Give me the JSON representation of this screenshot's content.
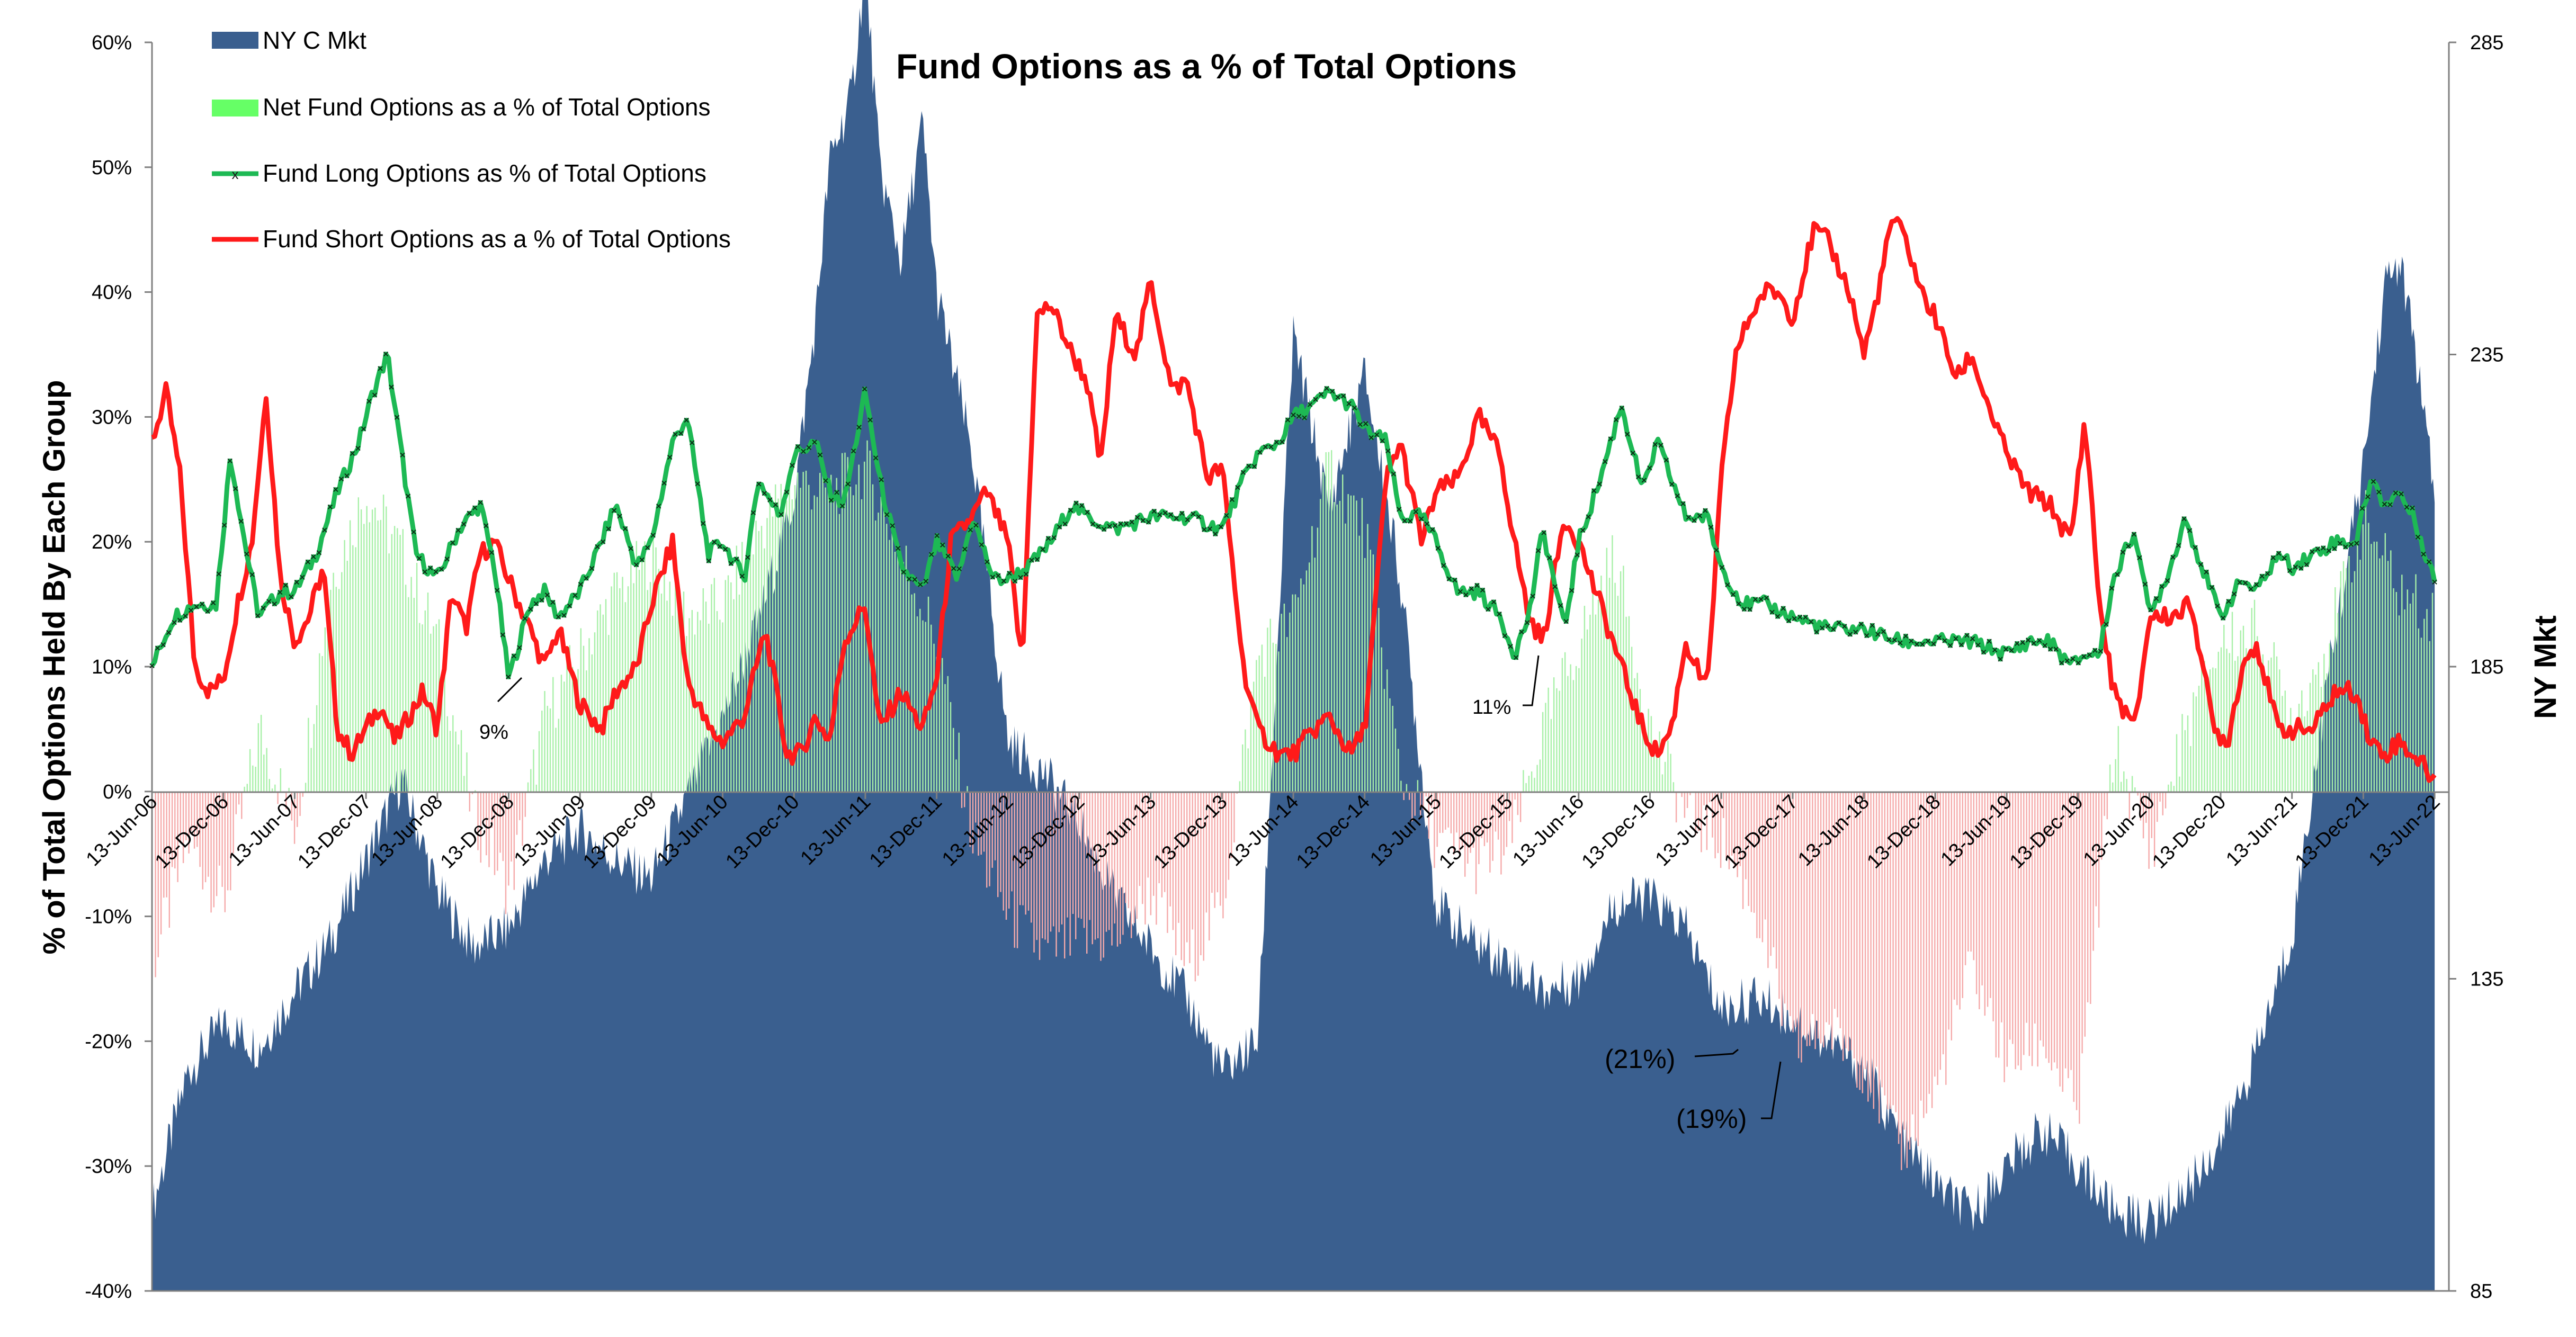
{
  "chart_data": {
    "type": "line",
    "title": "Fund Options as a % of Total Options",
    "ylabel_left": "% of Total Options Held By Each Group",
    "ylabel_right": "NY Mkt",
    "ylim_left": [
      -40,
      60
    ],
    "ylim_right": [
      85,
      285
    ],
    "y_left_ticks": [
      "60%",
      "50%",
      "40%",
      "30%",
      "20%",
      "10%",
      "0%",
      "-10%",
      "-20%",
      "-30%",
      "-40%"
    ],
    "y_left_tick_values": [
      60,
      50,
      40,
      30,
      20,
      10,
      0,
      -10,
      -20,
      -30,
      -40
    ],
    "y_right_ticks": [
      "285",
      "235",
      "185",
      "135",
      "85"
    ],
    "y_right_tick_values": [
      285,
      235,
      185,
      135,
      85
    ],
    "x_ticks": [
      "13-Jun-06",
      "13-Dec-06",
      "13-Jun-07",
      "13-Dec-07",
      "13-Jun-08",
      "13-Dec-08",
      "13-Jun-09",
      "13-Dec-09",
      "13-Jun-10",
      "13-Dec-10",
      "13-Jun-11",
      "13-Dec-11",
      "13-Jun-12",
      "13-Dec-12",
      "13-Jun-13",
      "13-Dec-13",
      "13-Jun-14",
      "13-Dec-14",
      "13-Jun-15",
      "13-Dec-15",
      "13-Jun-16",
      "13-Dec-16",
      "13-Jun-17",
      "13-Dec-17",
      "13-Jun-18",
      "13-Dec-18",
      "13-Jun-19",
      "13-Dec-19",
      "13-Jun-20",
      "13-Dec-20",
      "13-Jun-21",
      "13-Dec-21",
      "13-Jun-22"
    ],
    "x_tick_years": [
      2006.45,
      2006.95,
      2007.45,
      2007.95,
      2008.45,
      2008.95,
      2009.45,
      2009.95,
      2010.45,
      2010.95,
      2011.45,
      2011.95,
      2012.45,
      2012.95,
      2013.45,
      2013.95,
      2014.45,
      2014.95,
      2015.45,
      2015.95,
      2016.45,
      2016.95,
      2017.45,
      2017.95,
      2018.45,
      2018.95,
      2019.45,
      2019.95,
      2020.45,
      2020.95,
      2021.45,
      2021.95,
      2022.45
    ],
    "legend_position": "top-left",
    "grid": false,
    "series": [
      {
        "name": "NY C Mkt",
        "kind": "area",
        "axis": "right",
        "color": "#3A5F8F",
        "x": [
          2006.45,
          2006.7,
          2006.95,
          2007.2,
          2007.45,
          2007.7,
          2007.95,
          2008.2,
          2008.45,
          2008.7,
          2008.95,
          2009.2,
          2009.45,
          2009.7,
          2009.95,
          2010.2,
          2010.45,
          2010.7,
          2010.95,
          2011.1,
          2011.2,
          2011.35,
          2011.45,
          2011.55,
          2011.7,
          2011.85,
          2011.95,
          2012.2,
          2012.45,
          2012.7,
          2012.95,
          2013.2,
          2013.45,
          2013.7,
          2013.95,
          2014.2,
          2014.45,
          2014.7,
          2014.95,
          2015.2,
          2015.45,
          2015.7,
          2015.95,
          2016.2,
          2016.45,
          2016.7,
          2016.95,
          2017.2,
          2017.45,
          2017.7,
          2017.95,
          2018.2,
          2018.45,
          2018.7,
          2018.95,
          2019.2,
          2019.45,
          2019.7,
          2019.95,
          2020.2,
          2020.45,
          2020.7,
          2020.95,
          2021.2,
          2021.45,
          2021.7,
          2021.95,
          2022.1,
          2022.2,
          2022.3,
          2022.45
        ],
        "y": [
          98,
          120,
          128,
          124,
          133,
          141,
          154,
          167,
          149,
          140,
          143,
          154,
          159,
          154,
          151,
          164,
          177,
          192,
          212,
          240,
          266,
          276,
          297,
          265,
          250,
          272,
          245,
          219,
          173,
          168,
          160,
          148,
          140,
          132,
          120,
          125,
          238,
          210,
          232,
          199,
          147,
          141,
          138,
          133,
          135,
          147,
          148,
          143,
          130,
          132,
          129,
          125,
          121,
          110,
          102,
          97,
          105,
          111,
          105,
          98,
          96,
          101,
          109,
          123,
          142,
          183,
          217,
          246,
          250,
          238,
          212
        ]
      },
      {
        "name": "Net Fund Options as a % of Total Options",
        "kind": "columns",
        "axis": "left",
        "color_pos": "#a8f0a8",
        "color_neg": "#f5aaaa",
        "x": [
          2006.45,
          2006.7,
          2006.95,
          2007.2,
          2007.45,
          2007.7,
          2007.95,
          2008.2,
          2008.45,
          2008.7,
          2008.95,
          2009.2,
          2009.45,
          2009.7,
          2009.95,
          2010.2,
          2010.45,
          2010.7,
          2010.95,
          2011.2,
          2011.45,
          2011.7,
          2011.95,
          2012.2,
          2012.45,
          2012.7,
          2012.95,
          2013.2,
          2013.45,
          2013.7,
          2013.95,
          2014.2,
          2014.45,
          2014.7,
          2014.95,
          2015.2,
          2015.45,
          2015.7,
          2015.95,
          2016.2,
          2016.45,
          2016.7,
          2016.95,
          2017.2,
          2017.45,
          2017.7,
          2017.95,
          2018.2,
          2018.45,
          2018.7,
          2018.95,
          2019.2,
          2019.45,
          2019.7,
          2019.95,
          2020.2,
          2020.45,
          2020.7,
          2020.95,
          2021.2,
          2021.45,
          2021.7,
          2021.95,
          2022.2,
          2022.45
        ],
        "y": [
          -14,
          -4,
          -9,
          5,
          -3,
          17,
          24,
          19,
          12,
          -2,
          -8,
          6,
          11,
          16,
          19,
          14,
          15,
          21,
          25,
          24,
          26,
          19,
          12,
          -4,
          -10,
          -13,
          -12,
          -12,
          -8,
          -14,
          -9,
          11,
          14,
          26,
          21,
          1,
          -4,
          -6,
          -5,
          5,
          12,
          19,
          5,
          -2,
          -4,
          -10,
          -21,
          -19,
          -22,
          -29,
          -24,
          -14,
          -22,
          -20,
          -26,
          4,
          -5,
          5,
          12,
          13,
          6,
          12,
          22,
          16,
          14
        ]
      },
      {
        "name": "Fund Long Options as % of Total Options",
        "kind": "line-markers",
        "axis": "left",
        "color": "#1db954",
        "x": [
          2006.45,
          2006.6,
          2006.75,
          2006.9,
          2007.0,
          2007.1,
          2007.2,
          2007.35,
          2007.45,
          2007.6,
          2007.75,
          2007.9,
          2008.0,
          2008.1,
          2008.2,
          2008.3,
          2008.45,
          2008.6,
          2008.75,
          2008.85,
          2008.95,
          2009.1,
          2009.2,
          2009.3,
          2009.45,
          2009.6,
          2009.7,
          2009.85,
          2009.95,
          2010.1,
          2010.2,
          2010.35,
          2010.45,
          2010.6,
          2010.7,
          2010.85,
          2010.95,
          2011.1,
          2011.2,
          2011.3,
          2011.45,
          2011.55,
          2011.7,
          2011.85,
          2011.95,
          2012.1,
          2012.2,
          2012.35,
          2012.45,
          2012.6,
          2012.75,
          2012.9,
          2013.0,
          2013.2,
          2013.45,
          2013.7,
          2013.95,
          2014.1,
          2014.2,
          2014.35,
          2014.45,
          2014.6,
          2014.7,
          2014.85,
          2014.95,
          2015.1,
          2015.2,
          2015.35,
          2015.45,
          2015.6,
          2015.75,
          2015.9,
          2016.0,
          2016.1,
          2016.2,
          2016.35,
          2016.45,
          2016.6,
          2016.75,
          2016.9,
          2017.0,
          2017.2,
          2017.35,
          2017.45,
          2017.6,
          2017.75,
          2017.95,
          2018.2,
          2018.45,
          2018.7,
          2018.95,
          2019.2,
          2019.45,
          2019.6,
          2019.75,
          2019.9,
          2020.0,
          2020.1,
          2020.2,
          2020.35,
          2020.45,
          2020.6,
          2020.7,
          2020.85,
          2020.95,
          2021.1,
          2021.2,
          2021.35,
          2021.45,
          2021.6,
          2021.75,
          2021.9,
          2022.0,
          2022.1,
          2022.2,
          2022.3,
          2022.45
        ],
        "y": [
          10,
          14,
          15,
          15,
          27,
          20,
          14,
          16,
          16,
          19,
          24,
          28,
          32,
          35,
          27,
          19,
          17,
          21,
          23,
          18,
          9,
          15,
          16,
          14,
          16,
          20,
          23,
          18,
          20,
          28,
          30,
          19,
          20,
          17,
          25,
          22,
          27,
          28,
          24,
          23,
          32,
          25,
          18,
          16,
          20,
          17,
          22,
          17,
          17,
          18,
          20,
          23,
          22,
          21,
          22,
          22,
          21,
          25,
          27,
          28,
          30,
          31,
          32,
          31,
          29,
          28,
          22,
          22,
          20,
          16,
          16,
          14,
          11,
          14,
          21,
          13,
          20,
          25,
          31,
          24,
          28,
          22,
          22,
          18,
          15,
          15,
          14,
          13,
          13,
          12,
          12,
          12,
          11,
          12,
          12,
          10,
          11,
          11,
          17,
          21,
          14,
          18,
          22,
          17,
          14,
          17,
          16,
          19,
          18,
          19,
          20,
          20,
          25,
          23,
          24,
          22,
          17
        ]
      },
      {
        "name": "Fund Short Options as a % of Total Options",
        "kind": "line",
        "axis": "left",
        "color": "#ff1a1a",
        "x": [
          2006.45,
          2006.55,
          2006.65,
          2006.75,
          2006.85,
          2006.95,
          2007.05,
          2007.15,
          2007.25,
          2007.35,
          2007.45,
          2007.55,
          2007.65,
          2007.75,
          2007.85,
          2007.95,
          2008.05,
          2008.15,
          2008.25,
          2008.35,
          2008.45,
          2008.55,
          2008.65,
          2008.75,
          2008.85,
          2008.95,
          2009.1,
          2009.2,
          2009.3,
          2009.45,
          2009.6,
          2009.7,
          2009.85,
          2009.95,
          2010.1,
          2010.2,
          2010.35,
          2010.45,
          2010.6,
          2010.75,
          2010.9,
          2011.0,
          2011.1,
          2011.2,
          2011.3,
          2011.45,
          2011.55,
          2011.7,
          2011.85,
          2011.95,
          2012.05,
          2012.2,
          2012.3,
          2012.45,
          2012.55,
          2012.65,
          2012.75,
          2012.9,
          2013.0,
          2013.1,
          2013.2,
          2013.35,
          2013.45,
          2013.6,
          2013.7,
          2013.85,
          2013.95,
          2014.1,
          2014.2,
          2014.35,
          2014.45,
          2014.6,
          2014.7,
          2014.85,
          2014.95,
          2015.1,
          2015.2,
          2015.35,
          2015.45,
          2015.6,
          2015.75,
          2015.9,
          2016.0,
          2016.1,
          2016.2,
          2016.35,
          2016.45,
          2016.6,
          2016.75,
          2016.9,
          2017.0,
          2017.1,
          2017.2,
          2017.35,
          2017.45,
          2017.55,
          2017.65,
          2017.75,
          2017.85,
          2017.95,
          2018.1,
          2018.2,
          2018.35,
          2018.45,
          2018.55,
          2018.65,
          2018.75,
          2018.85,
          2018.95,
          2019.1,
          2019.2,
          2019.35,
          2019.45,
          2019.6,
          2019.75,
          2019.9,
          2020.0,
          2020.1,
          2020.2,
          2020.35,
          2020.45,
          2020.6,
          2020.75,
          2020.9,
          2021.0,
          2021.1,
          2021.2,
          2021.35,
          2021.45,
          2021.6,
          2021.75,
          2021.9,
          2022.0,
          2022.1,
          2022.2,
          2022.3,
          2022.45
        ],
        "y": [
          28,
          32,
          25,
          10,
          8,
          9,
          15,
          20,
          32,
          17,
          12,
          14,
          18,
          5,
          3,
          5,
          7,
          4,
          6,
          8,
          5,
          16,
          13,
          19,
          20,
          17,
          13,
          10,
          13,
          7,
          5,
          8,
          10,
          15,
          20,
          9,
          5,
          4,
          6,
          13,
          3,
          3,
          6,
          4,
          12,
          15,
          5,
          8,
          5,
          9,
          20,
          22,
          24,
          20,
          10,
          38,
          39,
          35,
          33,
          26,
          38,
          35,
          41,
          32,
          33,
          25,
          26,
          10,
          5,
          3,
          3,
          5,
          6,
          3,
          5,
          25,
          28,
          20,
          24,
          25,
          30,
          27,
          20,
          14,
          12,
          22,
          20,
          15,
          10,
          5,
          3,
          5,
          12,
          8,
          25,
          35,
          38,
          40,
          40,
          38,
          45,
          44,
          40,
          35,
          40,
          46,
          44,
          40,
          38,
          33,
          35,
          30,
          27,
          24,
          23,
          20,
          30,
          15,
          8,
          5,
          14,
          14,
          15,
          5,
          4,
          10,
          12,
          5,
          5,
          5,
          8,
          8,
          4,
          3,
          4,
          3,
          1
        ]
      }
    ],
    "annotations": [
      {
        "text": "9%",
        "x": 2009.0,
        "y": 9
      },
      {
        "text": "11%",
        "x": 2015.95,
        "y": 11
      },
      {
        "text": "(21%)",
        "x": 2017.35,
        "y": -21
      },
      {
        "text": "(19%)",
        "x": 2017.75,
        "y": -19
      }
    ]
  },
  "colors": {
    "ny_mkt": "#3A5F8F",
    "net_pos": "#a8f0a8",
    "net_neg": "#f5aaaa",
    "long": "#1db954",
    "short": "#ff1a1a",
    "axis": "#7f7f7f"
  }
}
